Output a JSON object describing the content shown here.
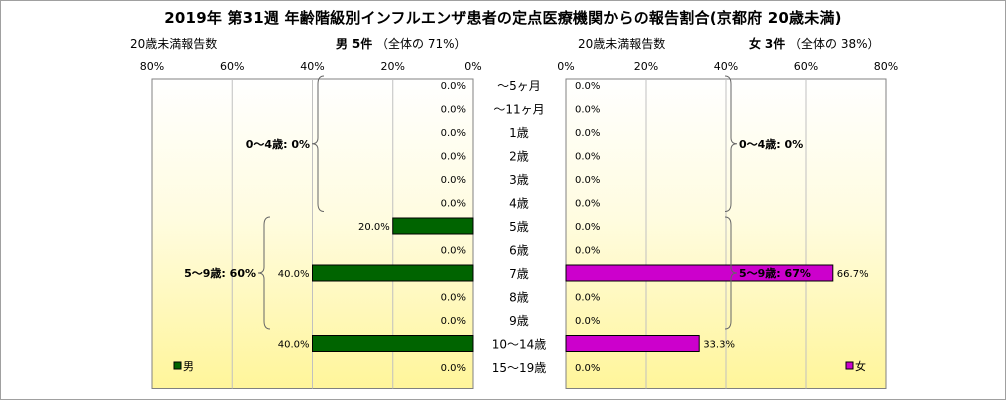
{
  "title": "2019年 第31週 年齢階級別インフルエンザ患者の定点医療機関からの報告割合(京都府 20歳未満)",
  "left_header": {
    "count_label": "20歳未満報告数",
    "sex": "男",
    "count": "5件",
    "share_label": "（全体の",
    "share": "71%）"
  },
  "right_header": {
    "count_label": "20歳未満報告数",
    "sex": "女",
    "count": "3件",
    "share_label": "（全体の",
    "share": "38%）"
  },
  "chart_data": {
    "type": "bar",
    "orientation": "horizontal-population-pyramid",
    "categories": [
      "～5ヶ月",
      "～11ヶ月",
      "1歳",
      "2歳",
      "3歳",
      "4歳",
      "5歳",
      "6歳",
      "7歳",
      "8歳",
      "9歳",
      "10～14歳",
      "15～19歳"
    ],
    "series": [
      {
        "name": "男",
        "color": "#006400",
        "values": [
          0,
          0,
          0,
          0,
          0,
          0,
          20,
          0,
          40,
          0,
          0,
          40,
          0
        ],
        "labels": [
          "0.0%",
          "0.0%",
          "0.0%",
          "0.0%",
          "0.0%",
          "0.0%",
          "20.0%",
          "0.0%",
          "40.0%",
          "0.0%",
          "0.0%",
          "40.0%",
          "0.0%"
        ]
      },
      {
        "name": "女",
        "color": "#cc00cc",
        "values": [
          0,
          0,
          0,
          0,
          0,
          0,
          0,
          0,
          66.7,
          0,
          0,
          33.3,
          0
        ],
        "labels": [
          "0.0%",
          "0.0%",
          "0.0%",
          "0.0%",
          "0.0%",
          "0.0%",
          "0.0%",
          "0.0%",
          "66.7%",
          "0.0%",
          "0.0%",
          "33.3%",
          "0.0%"
        ]
      }
    ],
    "xlim": [
      0,
      80
    ],
    "left_ticks": [
      "80%",
      "60%",
      "40%",
      "20%",
      "0%"
    ],
    "right_ticks": [
      "0%",
      "20%",
      "40%",
      "60%",
      "80%"
    ],
    "groups": {
      "left": [
        {
          "label": "0～4歳: 0%",
          "from": 0,
          "to": 5
        },
        {
          "label": "5～9歳: 60%",
          "from": 6,
          "to": 10
        }
      ],
      "right": [
        {
          "label": "0～4歳: 0%",
          "from": 0,
          "to": 5
        },
        {
          "label": "5～9歳: 67%",
          "from": 6,
          "to": 10
        }
      ]
    },
    "legend": {
      "left": "男",
      "right": "女",
      "placement": "bottom-inside"
    },
    "plot_background": "#ffffe0 gradient to #fff5a0",
    "grid": true
  }
}
